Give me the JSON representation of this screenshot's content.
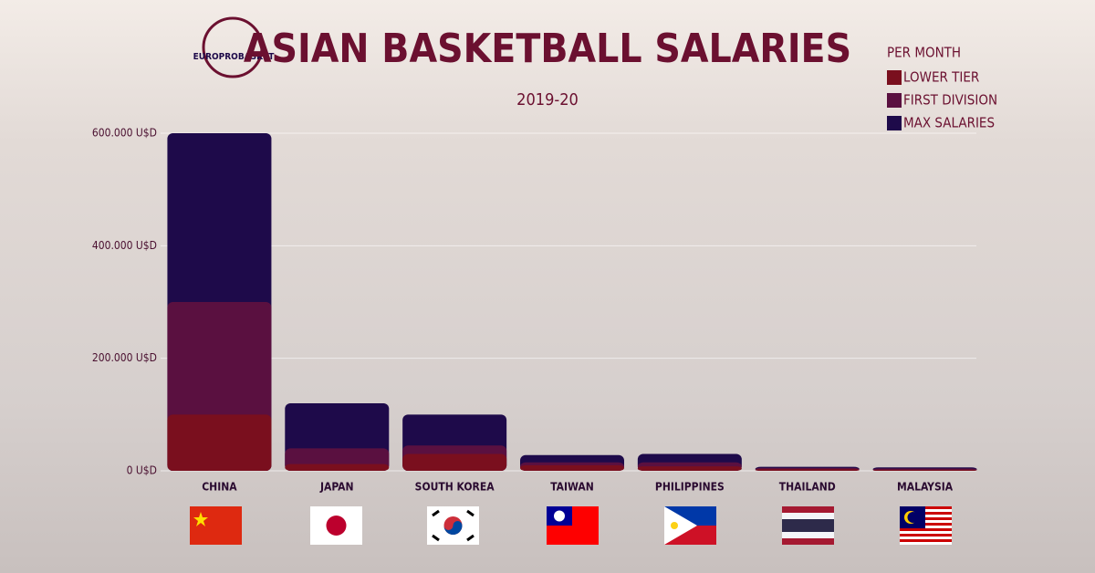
{
  "chart_data": {
    "type": "bar",
    "stacked": false,
    "logo": "EUROPROBASKET",
    "title": "ASIAN BASKETBALL SALARIES",
    "subtitle": "2019-20",
    "legend_title": "PER MONTH",
    "categories": [
      "CHINA",
      "JAPAN",
      "SOUTH KOREA",
      "TAIWAN",
      "PHILIPPINES",
      "THAILAND",
      "MALAYSIA"
    ],
    "series": [
      {
        "name": "LOWER TIER",
        "color": "#7a0f1e",
        "values": [
          100000,
          12000,
          30000,
          10000,
          8000,
          3000,
          2000
        ]
      },
      {
        "name": "FIRST DIVISION",
        "color": "#5a1040",
        "values": [
          300000,
          40000,
          45000,
          15000,
          15000,
          5000,
          4000
        ]
      },
      {
        "name": "MAX SALARIES",
        "color": "#1e0a4a",
        "values": [
          600000,
          120000,
          100000,
          28000,
          30000,
          7000,
          6000
        ]
      }
    ],
    "ylim": [
      0,
      600000
    ],
    "yticks": [
      {
        "value": 0,
        "label": "0 U$D"
      },
      {
        "value": 200000,
        "label": "200.000 U$D"
      },
      {
        "value": 400000,
        "label": "400.000 U$D"
      },
      {
        "value": 600000,
        "label": "600.000 U$D"
      }
    ],
    "grid": true
  }
}
